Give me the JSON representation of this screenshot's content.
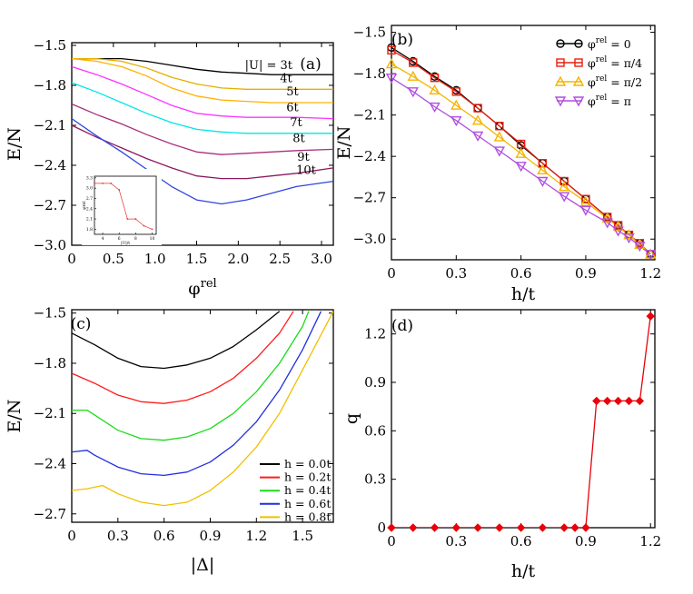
{
  "chart_data": [
    {
      "panel": "(a)",
      "type": "line",
      "xlabel": "φ^rel",
      "ylabel": "E/N",
      "xlim": [
        0,
        3.1416
      ],
      "ylim": [
        -3.0,
        -1.48
      ],
      "xticks": [
        "0",
        "0.5",
        "1.0",
        "1.5",
        "2.0",
        "2.5",
        "3.0"
      ],
      "yticks": [
        "-1.5",
        "-1.8",
        "-2.1",
        "-2.4",
        "-2.7",
        "-3.0"
      ],
      "annotation": "|U| = 3t",
      "series": [
        {
          "name": "3t",
          "color": "#000000",
          "x": [
            0,
            0.3,
            0.6,
            0.9,
            1.2,
            1.5,
            1.8,
            2.1,
            2.4,
            2.7,
            3.14
          ],
          "y": [
            -1.6,
            -1.6,
            -1.6,
            -1.62,
            -1.65,
            -1.68,
            -1.7,
            -1.71,
            -1.72,
            -1.72,
            -1.72
          ]
        },
        {
          "name": "4t",
          "color": "#e3b000",
          "x": [
            0,
            0.3,
            0.6,
            0.9,
            1.2,
            1.5,
            1.8,
            2.1,
            2.4,
            2.7,
            3.14
          ],
          "y": [
            -1.6,
            -1.6,
            -1.62,
            -1.67,
            -1.74,
            -1.79,
            -1.82,
            -1.83,
            -1.83,
            -1.83,
            -1.83
          ]
        },
        {
          "name": "5t",
          "color": "#ffb000",
          "x": [
            0,
            0.3,
            0.6,
            0.9,
            1.2,
            1.5,
            1.8,
            2.1,
            2.4,
            2.7,
            3.14
          ],
          "y": [
            -1.6,
            -1.62,
            -1.66,
            -1.73,
            -1.82,
            -1.88,
            -1.91,
            -1.92,
            -1.93,
            -1.93,
            -1.93
          ]
        },
        {
          "name": "6t",
          "color": "#ff33ff",
          "x": [
            0,
            0.3,
            0.6,
            0.9,
            1.2,
            1.5,
            1.8,
            2.1,
            2.4,
            2.7,
            3.14
          ],
          "y": [
            -1.66,
            -1.72,
            -1.79,
            -1.87,
            -1.95,
            -2.01,
            -2.03,
            -2.04,
            -2.04,
            -2.04,
            -2.05
          ]
        },
        {
          "name": "7t",
          "color": "#00e5e5",
          "x": [
            0,
            0.3,
            0.6,
            0.9,
            1.2,
            1.5,
            1.8,
            2.1,
            2.4,
            2.7,
            3.14
          ],
          "y": [
            -1.78,
            -1.85,
            -1.93,
            -2.01,
            -2.08,
            -2.13,
            -2.15,
            -2.16,
            -2.16,
            -2.16,
            -2.16
          ]
        },
        {
          "name": "8t",
          "color": "#a8307a",
          "x": [
            0,
            0.3,
            0.6,
            0.9,
            1.2,
            1.5,
            1.8,
            2.1,
            2.4,
            2.7,
            3.14
          ],
          "y": [
            -1.94,
            -2.02,
            -2.09,
            -2.17,
            -2.24,
            -2.3,
            -2.32,
            -2.31,
            -2.3,
            -2.29,
            -2.28
          ]
        },
        {
          "name": "9t",
          "color": "#8b1a5e",
          "x": [
            0,
            0.3,
            0.6,
            0.9,
            1.2,
            1.5,
            1.8,
            2.1,
            2.4,
            2.7,
            3.14
          ],
          "y": [
            -2.1,
            -2.19,
            -2.27,
            -2.35,
            -2.42,
            -2.48,
            -2.5,
            -2.5,
            -2.48,
            -2.46,
            -2.42
          ]
        },
        {
          "name": "10t",
          "color": "#2f45e0",
          "x": [
            0,
            0.3,
            0.6,
            0.9,
            1.2,
            1.5,
            1.8,
            2.1,
            2.4,
            2.7,
            3.14
          ],
          "y": [
            -2.05,
            -2.18,
            -2.3,
            -2.43,
            -2.56,
            -2.66,
            -2.69,
            -2.66,
            -2.61,
            -2.56,
            -2.52
          ]
        }
      ],
      "inset": {
        "xlabel": "|U|/t",
        "ylabel": "φ^rel",
        "xticks": [
          "4",
          "6",
          "8",
          "10"
        ],
        "yticks": [
          "1.8",
          "2.1",
          "2.4",
          "2.7",
          "3.0",
          "3.3"
        ],
        "x": [
          3,
          4,
          5,
          6,
          7,
          8,
          9,
          10
        ],
        "y": [
          3.14,
          3.14,
          3.14,
          2.95,
          2.1,
          2.1,
          1.9,
          1.8
        ]
      }
    },
    {
      "panel": "(b)",
      "type": "line",
      "xlabel": "h/t",
      "ylabel": "E/N",
      "xlim": [
        0,
        1.22
      ],
      "ylim": [
        -3.15,
        -1.45
      ],
      "xticks": [
        "0",
        "0.3",
        "0.6",
        "0.9",
        "1.2"
      ],
      "yticks": [
        "-1.5",
        "-1.8",
        "-2.1",
        "-2.4",
        "-2.7",
        "-3.0"
      ],
      "legend": "top-right",
      "series": [
        {
          "name": "φ^rel = 0",
          "color": "#000000",
          "marker": "circle",
          "x": [
            0,
            0.1,
            0.2,
            0.3,
            0.4,
            0.5,
            0.6,
            0.7,
            0.8,
            0.9,
            1.0,
            1.05,
            1.1,
            1.15,
            1.2
          ],
          "y": [
            -1.61,
            -1.71,
            -1.82,
            -1.92,
            -2.05,
            -2.18,
            -2.32,
            -2.45,
            -2.58,
            -2.71,
            -2.84,
            -2.9,
            -2.97,
            -3.03,
            -3.11
          ]
        },
        {
          "name": "φ^rel = π/4",
          "color": "#e8200f",
          "marker": "square",
          "x": [
            0,
            0.1,
            0.2,
            0.3,
            0.4,
            0.5,
            0.6,
            0.7,
            0.8,
            0.9,
            1.0,
            1.05,
            1.1,
            1.15,
            1.2
          ],
          "y": [
            -1.63,
            -1.72,
            -1.83,
            -1.93,
            -2.05,
            -2.18,
            -2.31,
            -2.45,
            -2.58,
            -2.71,
            -2.84,
            -2.9,
            -2.97,
            -3.03,
            -3.11
          ]
        },
        {
          "name": "φ^rel = π/2",
          "color": "#f5b400",
          "marker": "triangle-up",
          "x": [
            0,
            0.1,
            0.2,
            0.3,
            0.4,
            0.5,
            0.6,
            0.7,
            0.8,
            0.9,
            1.0,
            1.05,
            1.1,
            1.15,
            1.2
          ],
          "y": [
            -1.73,
            -1.82,
            -1.92,
            -2.03,
            -2.14,
            -2.26,
            -2.38,
            -2.5,
            -2.62,
            -2.73,
            -2.85,
            -2.91,
            -2.97,
            -3.04,
            -3.11
          ]
        },
        {
          "name": "φ^rel = π",
          "color": "#b04fe0",
          "marker": "triangle-down",
          "x": [
            0,
            0.1,
            0.2,
            0.3,
            0.4,
            0.5,
            0.6,
            0.7,
            0.8,
            0.9,
            1.0,
            1.05,
            1.1,
            1.15,
            1.2
          ],
          "y": [
            -1.83,
            -1.93,
            -2.04,
            -2.14,
            -2.25,
            -2.36,
            -2.47,
            -2.58,
            -2.69,
            -2.79,
            -2.88,
            -2.94,
            -2.99,
            -3.05,
            -3.11
          ]
        }
      ]
    },
    {
      "panel": "(c)",
      "type": "line",
      "xlabel": "|Δ|",
      "ylabel": "E/N",
      "xlim": [
        0,
        1.7
      ],
      "ylim": [
        -2.75,
        -1.48
      ],
      "xticks": [
        "0",
        "0.3",
        "0.6",
        "0.9",
        "1.2",
        "1.5"
      ],
      "yticks": [
        "-1.5",
        "-1.8",
        "-2.1",
        "-2.4",
        "-2.7"
      ],
      "legend": "bottom-right",
      "series": [
        {
          "name": "h = 0.0t",
          "color": "#000000",
          "x": [
            0,
            0.15,
            0.3,
            0.45,
            0.6,
            0.75,
            0.9,
            1.05,
            1.2,
            1.35
          ],
          "y": [
            -1.62,
            -1.69,
            -1.77,
            -1.82,
            -1.83,
            -1.81,
            -1.77,
            -1.7,
            -1.6,
            -1.49
          ]
        },
        {
          "name": "h = 0.2t",
          "color": "#ff1a1a",
          "x": [
            0,
            0.15,
            0.3,
            0.45,
            0.6,
            0.75,
            0.9,
            1.05,
            1.2,
            1.35,
            1.44
          ],
          "y": [
            -1.86,
            -1.92,
            -1.99,
            -2.03,
            -2.04,
            -2.02,
            -1.97,
            -1.89,
            -1.77,
            -1.62,
            -1.49
          ]
        },
        {
          "name": "h = 0.4t",
          "color": "#1adb1a",
          "x": [
            0,
            0.1,
            0.15,
            0.3,
            0.45,
            0.6,
            0.75,
            0.9,
            1.05,
            1.2,
            1.35,
            1.5,
            1.54
          ],
          "y": [
            -2.08,
            -2.08,
            -2.11,
            -2.2,
            -2.25,
            -2.26,
            -2.24,
            -2.19,
            -2.1,
            -1.97,
            -1.8,
            -1.58,
            -1.49
          ]
        },
        {
          "name": "h = 0.6t",
          "color": "#1f2ee0",
          "x": [
            0,
            0.1,
            0.15,
            0.3,
            0.45,
            0.6,
            0.75,
            0.9,
            1.05,
            1.2,
            1.35,
            1.5,
            1.62
          ],
          "y": [
            -2.33,
            -2.32,
            -2.35,
            -2.42,
            -2.46,
            -2.47,
            -2.45,
            -2.39,
            -2.29,
            -2.15,
            -1.96,
            -1.72,
            -1.49
          ]
        },
        {
          "name": "h = 0.8t",
          "color": "#f0c000",
          "x": [
            0,
            0.1,
            0.2,
            0.3,
            0.45,
            0.6,
            0.75,
            0.9,
            1.05,
            1.2,
            1.35,
            1.5,
            1.7
          ],
          "y": [
            -2.56,
            -2.55,
            -2.53,
            -2.58,
            -2.63,
            -2.65,
            -2.63,
            -2.56,
            -2.45,
            -2.3,
            -2.1,
            -1.84,
            -1.49
          ]
        }
      ]
    },
    {
      "panel": "(d)",
      "type": "line",
      "xlabel": "h/t",
      "ylabel": "q",
      "xlim": [
        0,
        1.22
      ],
      "ylim": [
        0,
        1.35
      ],
      "xticks": [
        "0",
        "0.3",
        "0.6",
        "0.9",
        "1.2"
      ],
      "yticks": [
        "0",
        "0.3",
        "0.6",
        "0.9",
        "1.2"
      ],
      "series": [
        {
          "name": "",
          "color": "#e8000b",
          "marker": "diamond",
          "x": [
            0,
            0.1,
            0.2,
            0.3,
            0.4,
            0.5,
            0.6,
            0.7,
            0.8,
            0.85,
            0.9,
            0.95,
            1.0,
            1.05,
            1.1,
            1.15,
            1.2
          ],
          "y": [
            0,
            0,
            0,
            0,
            0,
            0,
            0,
            0,
            0,
            0,
            0,
            0.785,
            0.785,
            0.785,
            0.785,
            0.785,
            1.31
          ]
        }
      ]
    }
  ]
}
